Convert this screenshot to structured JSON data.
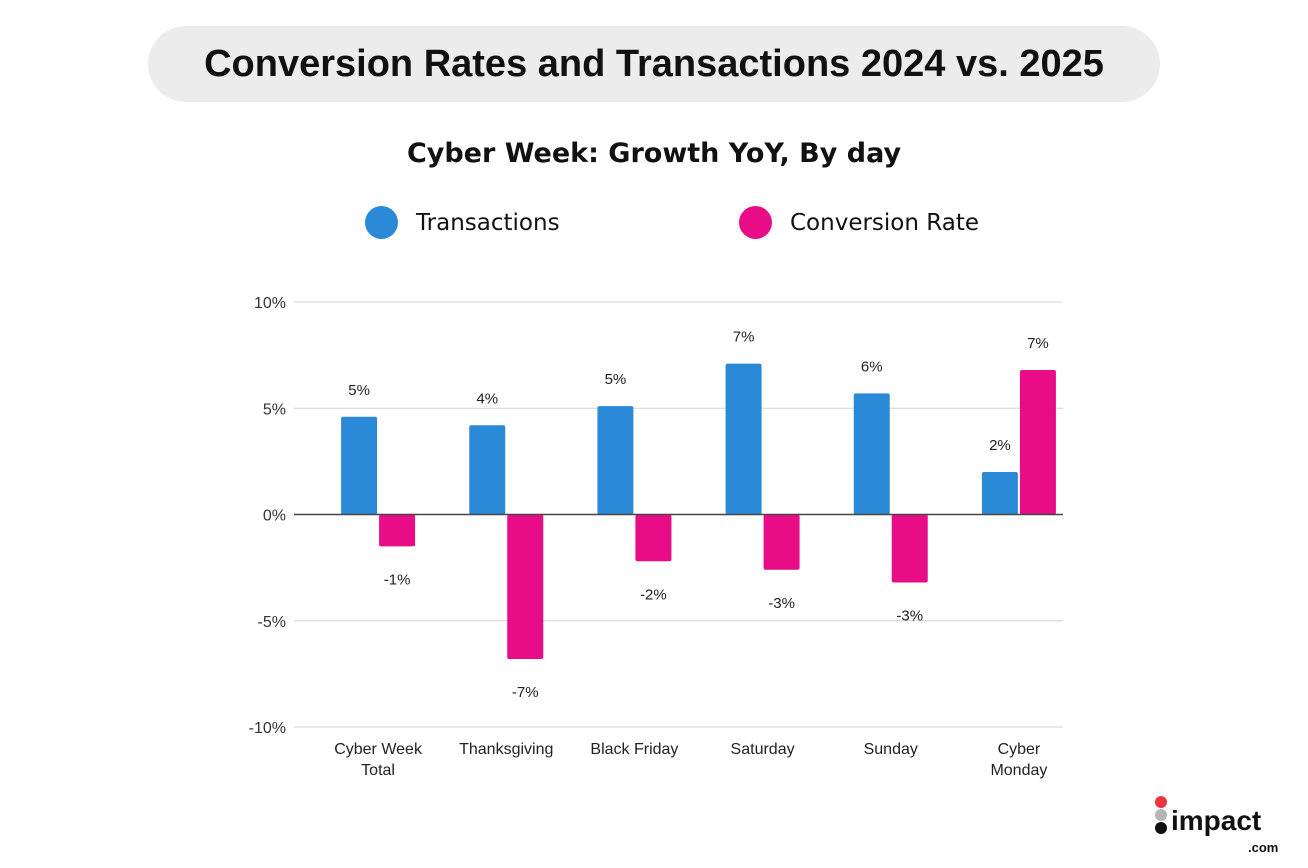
{
  "banner": {
    "title": "Conversion Rates and Transactions 2024 vs. 2025"
  },
  "chart_data": {
    "type": "bar",
    "title": "Cyber Week: Growth YoY, By day",
    "categories": [
      [
        "Cyber Week",
        "Total"
      ],
      [
        "Thanksgiving"
      ],
      [
        "Black Friday"
      ],
      [
        "Saturday"
      ],
      [
        "Sunday"
      ],
      [
        "Cyber",
        "Monday"
      ]
    ],
    "series": [
      {
        "name": "Transactions",
        "color": "#2b8ad8",
        "values": [
          4.6,
          4.2,
          5.1,
          7.1,
          5.7,
          2.0
        ],
        "labels": [
          "5%",
          "4%",
          "5%",
          "7%",
          "6%",
          "2%"
        ]
      },
      {
        "name": "Conversion Rate",
        "color": "#e90c87",
        "values": [
          -1.5,
          -6.8,
          -2.2,
          -2.6,
          -3.2,
          6.8
        ],
        "labels": [
          "-1%",
          "-7%",
          "-2%",
          "-3%",
          "-3%",
          "7%"
        ]
      }
    ],
    "ylim": [
      -10,
      10
    ],
    "yticks": [
      {
        "v": 10,
        "label": "10%"
      },
      {
        "v": 5,
        "label": "5%"
      },
      {
        "v": 0,
        "label": "0%"
      },
      {
        "v": -5,
        "label": "-5%"
      },
      {
        "v": -10,
        "label": "-10%"
      }
    ],
    "grid": true,
    "legend": "top"
  },
  "logo": {
    "text": "impact",
    "suffix": ".com"
  }
}
